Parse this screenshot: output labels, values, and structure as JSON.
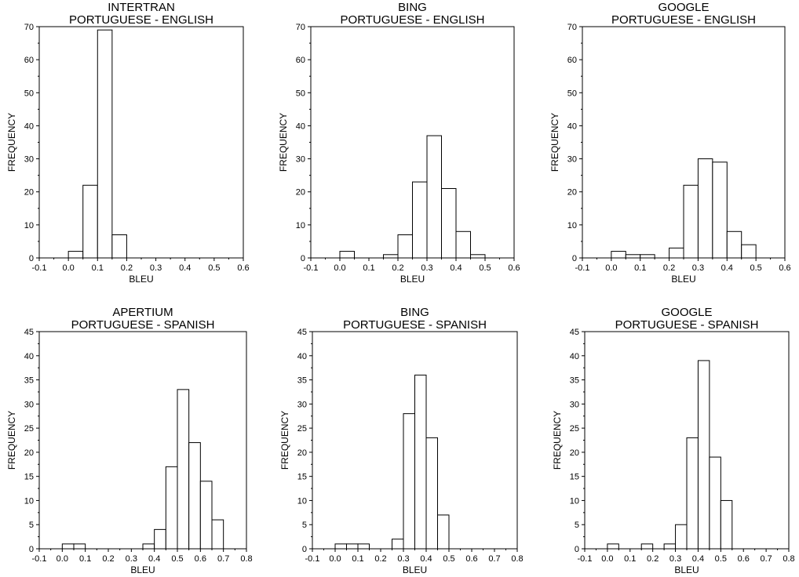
{
  "chart_data": [
    {
      "type": "bar",
      "title": "INTERTRAN",
      "subtitle": "PORTUGUESE - ENGLISH",
      "xlabel": "BLEU",
      "ylabel": "FREQUENCY",
      "xlim": [
        -0.1,
        0.6
      ],
      "ylim": [
        0,
        70
      ],
      "xticks": [
        -0.1,
        0.0,
        0.1,
        0.2,
        0.3,
        0.4,
        0.5,
        0.6
      ],
      "yticks": [
        0,
        10,
        20,
        30,
        40,
        50,
        60,
        70
      ],
      "bin_width": 0.05,
      "x": [
        0.0,
        0.05,
        0.1,
        0.15,
        0.2,
        0.25,
        0.3,
        0.35,
        0.4,
        0.45,
        0.5,
        0.55
      ],
      "values": [
        2,
        22,
        69,
        7,
        0,
        0,
        0,
        0,
        0,
        0,
        0,
        0
      ]
    },
    {
      "type": "bar",
      "title": "BING",
      "subtitle": "PORTUGUESE - ENGLISH",
      "xlabel": "BLEU",
      "ylabel": "FREQUENCY",
      "xlim": [
        -0.1,
        0.6
      ],
      "ylim": [
        0,
        70
      ],
      "xticks": [
        -0.1,
        0.0,
        0.1,
        0.2,
        0.3,
        0.4,
        0.5,
        0.6
      ],
      "yticks": [
        0,
        10,
        20,
        30,
        40,
        50,
        60,
        70
      ],
      "bin_width": 0.05,
      "x": [
        0.0,
        0.05,
        0.1,
        0.15,
        0.2,
        0.25,
        0.3,
        0.35,
        0.4,
        0.45,
        0.5,
        0.55
      ],
      "values": [
        2,
        0,
        0,
        1,
        7,
        23,
        37,
        21,
        8,
        1,
        0,
        0
      ]
    },
    {
      "type": "bar",
      "title": "GOOGLE",
      "subtitle": "PORTUGUESE - ENGLISH",
      "xlabel": "BLEU",
      "ylabel": "FREQUENCY",
      "xlim": [
        -0.1,
        0.6
      ],
      "ylim": [
        0,
        70
      ],
      "xticks": [
        -0.1,
        0.0,
        0.1,
        0.2,
        0.3,
        0.4,
        0.5,
        0.6
      ],
      "yticks": [
        0,
        10,
        20,
        30,
        40,
        50,
        60,
        70
      ],
      "bin_width": 0.05,
      "x": [
        0.0,
        0.05,
        0.1,
        0.15,
        0.2,
        0.25,
        0.3,
        0.35,
        0.4,
        0.45,
        0.5,
        0.55
      ],
      "values": [
        2,
        1,
        1,
        0,
        3,
        22,
        30,
        29,
        8,
        4,
        0,
        0
      ]
    },
    {
      "type": "bar",
      "title": "APERTIUM",
      "subtitle": "PORTUGUESE - SPANISH",
      "xlabel": "BLEU",
      "ylabel": "FREQUENCY",
      "xlim": [
        -0.1,
        0.8
      ],
      "ylim": [
        0,
        45
      ],
      "xticks": [
        -0.1,
        0.0,
        0.1,
        0.2,
        0.3,
        0.4,
        0.5,
        0.6,
        0.7,
        0.8
      ],
      "yticks": [
        0,
        5,
        10,
        15,
        20,
        25,
        30,
        35,
        40,
        45
      ],
      "bin_width": 0.05,
      "x": [
        0.0,
        0.05,
        0.1,
        0.15,
        0.2,
        0.25,
        0.3,
        0.35,
        0.4,
        0.45,
        0.5,
        0.55,
        0.6,
        0.65,
        0.7,
        0.75
      ],
      "values": [
        1,
        1,
        0,
        0,
        0,
        0,
        0,
        1,
        4,
        17,
        33,
        22,
        14,
        6,
        0,
        0
      ]
    },
    {
      "type": "bar",
      "title": "BING",
      "subtitle": "PORTUGUESE - SPANISH",
      "xlabel": "BLEU",
      "ylabel": "FREQUENCY",
      "xlim": [
        -0.1,
        0.8
      ],
      "ylim": [
        0,
        45
      ],
      "xticks": [
        -0.1,
        0.0,
        0.1,
        0.2,
        0.3,
        0.4,
        0.5,
        0.6,
        0.7,
        0.8
      ],
      "yticks": [
        0,
        5,
        10,
        15,
        20,
        25,
        30,
        35,
        40,
        45
      ],
      "bin_width": 0.05,
      "x": [
        0.0,
        0.05,
        0.1,
        0.15,
        0.2,
        0.25,
        0.3,
        0.35,
        0.4,
        0.45,
        0.5,
        0.55,
        0.6,
        0.65,
        0.7,
        0.75
      ],
      "values": [
        1,
        1,
        1,
        0,
        0,
        2,
        28,
        36,
        23,
        7,
        0,
        0,
        0,
        0,
        0,
        0
      ]
    },
    {
      "type": "bar",
      "title": "GOOGLE",
      "subtitle": "PORTUGUESE - SPANISH",
      "xlabel": "BLEU",
      "ylabel": "FREQUENCY",
      "xlim": [
        -0.1,
        0.8
      ],
      "ylim": [
        0,
        45
      ],
      "xticks": [
        -0.1,
        0.0,
        0.1,
        0.2,
        0.3,
        0.4,
        0.5,
        0.6,
        0.7,
        0.8
      ],
      "yticks": [
        0,
        5,
        10,
        15,
        20,
        25,
        30,
        35,
        40,
        45
      ],
      "bin_width": 0.05,
      "x": [
        0.0,
        0.05,
        0.1,
        0.15,
        0.2,
        0.25,
        0.3,
        0.35,
        0.4,
        0.45,
        0.5,
        0.55,
        0.6,
        0.65,
        0.7,
        0.75
      ],
      "values": [
        1,
        0,
        0,
        1,
        0,
        1,
        5,
        23,
        39,
        19,
        10,
        0,
        0,
        0,
        0,
        0
      ]
    }
  ]
}
